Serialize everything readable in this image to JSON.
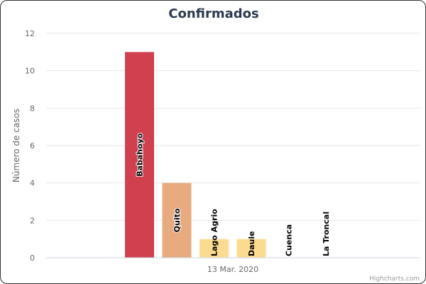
{
  "chart_data": {
    "type": "bar",
    "title": "Confirmados",
    "xlabel": "13 Mar. 2020",
    "ylabel": "Número de casos",
    "ylim": [
      0,
      12
    ],
    "yticks": [
      0,
      2,
      4,
      6,
      8,
      10,
      12
    ],
    "grid": true,
    "credits": "Highcharts.com",
    "series": [
      {
        "name": "Babahoyo",
        "values": [
          11
        ],
        "color": "#d0404e"
      },
      {
        "name": "Quito",
        "values": [
          4
        ],
        "color": "#e8ab7f"
      },
      {
        "name": "Lago Agrio",
        "values": [
          1
        ],
        "color": "#fbdb90"
      },
      {
        "name": "Daule",
        "values": [
          1
        ],
        "color": "#fbdb90"
      },
      {
        "name": "Cuenca",
        "values": [
          0
        ],
        "color": "#fbdb90"
      },
      {
        "name": "La Troncal",
        "values": [
          0
        ],
        "color": "#fbdb90"
      }
    ]
  }
}
